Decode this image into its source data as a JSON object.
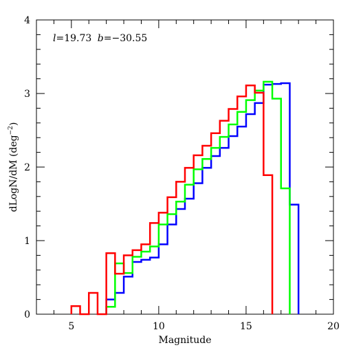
{
  "chart_data": {
    "type": "histogram-step",
    "annotation": {
      "l": "19.73",
      "b": "−30.55"
    },
    "xlabel": "Magnitude",
    "ylabel": "dLogN/dM (deg⁻²)",
    "ylabel_main": "dLogN/dM (deg",
    "ylabel_sup": "−2",
    "ylabel_close": ")",
    "xlim": [
      3,
      20
    ],
    "ylim": [
      0,
      4
    ],
    "xticks_major": [
      5,
      10,
      15,
      20
    ],
    "yticks_major": [
      0,
      1,
      2,
      3,
      4
    ],
    "series": [
      {
        "color": "#0000ff",
        "stroke_width": 2.5,
        "x_edges": [
          7.0,
          7.5,
          8.0,
          8.5,
          9.0,
          9.5,
          10.0,
          10.5,
          11.0,
          11.5,
          12.0,
          12.5,
          13.0,
          13.5,
          14.0,
          14.5,
          15.0,
          15.5,
          16.0,
          16.5,
          17.0,
          17.5
        ],
        "values": [
          0.2,
          0.29,
          0.51,
          0.71,
          0.74,
          0.77,
          0.95,
          1.22,
          1.43,
          1.57,
          1.78,
          1.99,
          2.15,
          2.26,
          2.42,
          2.55,
          2.72,
          2.87,
          3.12,
          3.13,
          3.14,
          1.49
        ]
      },
      {
        "color": "#00ff00",
        "stroke_width": 2.5,
        "x_edges": [
          7.0,
          7.5,
          8.0,
          8.5,
          9.0,
          9.5,
          10.0,
          10.5,
          11.0,
          11.5,
          12.0,
          12.5,
          13.0,
          13.5,
          14.0,
          14.5,
          15.0,
          15.5,
          16.0,
          16.5,
          17.0
        ],
        "values": [
          0.1,
          0.69,
          0.56,
          0.78,
          0.85,
          0.92,
          1.22,
          1.36,
          1.53,
          1.76,
          1.97,
          2.11,
          2.26,
          2.41,
          2.58,
          2.75,
          2.91,
          3.04,
          3.16,
          2.93,
          1.71
        ]
      },
      {
        "color": "#ff0000",
        "stroke_width": 2.5,
        "x_edges": [
          5.0,
          5.5,
          6.0,
          6.5,
          7.0,
          7.5,
          8.0,
          8.5,
          9.0,
          9.5,
          10.0,
          10.5,
          11.0,
          11.5,
          12.0,
          12.5,
          13.0,
          13.5,
          14.0,
          14.5,
          15.0,
          15.5,
          16.0,
          16.5
        ],
        "values": [
          0.11,
          0.0,
          0.29,
          0.0,
          0.83,
          0.55,
          0.8,
          0.87,
          0.95,
          1.24,
          1.38,
          1.59,
          1.8,
          1.99,
          2.16,
          2.29,
          2.46,
          2.63,
          2.79,
          2.96,
          3.11,
          3.01,
          1.89
        ]
      }
    ]
  }
}
